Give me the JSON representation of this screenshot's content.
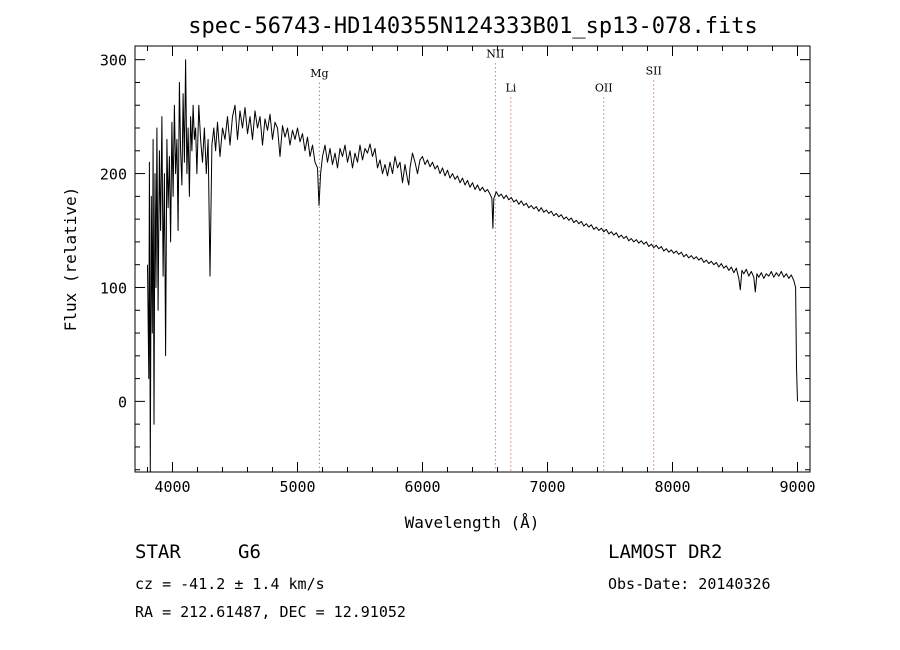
{
  "chart_data": {
    "type": "line",
    "title": "spec-56743-HD140355N124333B01_sp13-078.fits",
    "xlabel": "Wavelength (Å)",
    "ylabel": "Flux (relative)",
    "xlim": [
      3700,
      9100
    ],
    "ylim": [
      -62,
      312
    ],
    "xticks": [
      4000,
      5000,
      6000,
      7000,
      8000,
      9000
    ],
    "yticks": [
      0,
      100,
      200,
      300
    ],
    "grid": false,
    "series": [
      {
        "points": [
          [
            3800,
            120
          ],
          [
            3810,
            20
          ],
          [
            3815,
            210
          ],
          [
            3822,
            -62
          ],
          [
            3830,
            180
          ],
          [
            3838,
            60
          ],
          [
            3845,
            230
          ],
          [
            3852,
            -20
          ],
          [
            3860,
            200
          ],
          [
            3868,
            100
          ],
          [
            3875,
            240
          ],
          [
            3885,
            80
          ],
          [
            3895,
            220
          ],
          [
            3905,
            150
          ],
          [
            3915,
            250
          ],
          [
            3925,
            110
          ],
          [
            3935,
            200
          ],
          [
            3945,
            40
          ],
          [
            3955,
            230
          ],
          [
            3965,
            170
          ],
          [
            3975,
            215
          ],
          [
            3985,
            140
          ],
          [
            3995,
            245
          ],
          [
            4005,
            180
          ],
          [
            4015,
            260
          ],
          [
            4025,
            200
          ],
          [
            4035,
            230
          ],
          [
            4045,
            150
          ],
          [
            4055,
            280
          ],
          [
            4065,
            220
          ],
          [
            4075,
            190
          ],
          [
            4085,
            270
          ],
          [
            4095,
            210
          ],
          [
            4105,
            300
          ],
          [
            4115,
            200
          ],
          [
            4125,
            240
          ],
          [
            4135,
            180
          ],
          [
            4145,
            250
          ],
          [
            4155,
            220
          ],
          [
            4165,
            260
          ],
          [
            4175,
            230
          ],
          [
            4185,
            240
          ],
          [
            4195,
            200
          ],
          [
            4210,
            260
          ],
          [
            4225,
            230
          ],
          [
            4240,
            210
          ],
          [
            4255,
            240
          ],
          [
            4270,
            200
          ],
          [
            4285,
            230
          ],
          [
            4300,
            110
          ],
          [
            4315,
            225
          ],
          [
            4330,
            240
          ],
          [
            4345,
            220
          ],
          [
            4360,
            245
          ],
          [
            4380,
            215
          ],
          [
            4400,
            240
          ],
          [
            4420,
            230
          ],
          [
            4440,
            250
          ],
          [
            4460,
            225
          ],
          [
            4480,
            250
          ],
          [
            4500,
            260
          ],
          [
            4520,
            230
          ],
          [
            4540,
            255
          ],
          [
            4560,
            240
          ],
          [
            4580,
            258
          ],
          [
            4600,
            235
          ],
          [
            4620,
            250
          ],
          [
            4640,
            230
          ],
          [
            4660,
            255
          ],
          [
            4680,
            240
          ],
          [
            4700,
            250
          ],
          [
            4720,
            225
          ],
          [
            4740,
            248
          ],
          [
            4760,
            238
          ],
          [
            4780,
            252
          ],
          [
            4800,
            230
          ],
          [
            4820,
            245
          ],
          [
            4840,
            240
          ],
          [
            4860,
            215
          ],
          [
            4880,
            242
          ],
          [
            4900,
            232
          ],
          [
            4920,
            240
          ],
          [
            4940,
            225
          ],
          [
            4960,
            238
          ],
          [
            4980,
            230
          ],
          [
            5000,
            240
          ],
          [
            5020,
            228
          ],
          [
            5040,
            235
          ],
          [
            5060,
            220
          ],
          [
            5080,
            232
          ],
          [
            5100,
            215
          ],
          [
            5120,
            225
          ],
          [
            5140,
            210
          ],
          [
            5160,
            205
          ],
          [
            5172,
            172
          ],
          [
            5185,
            200
          ],
          [
            5200,
            215
          ],
          [
            5220,
            225
          ],
          [
            5240,
            210
          ],
          [
            5260,
            222
          ],
          [
            5280,
            208
          ],
          [
            5300,
            218
          ],
          [
            5320,
            205
          ],
          [
            5340,
            222
          ],
          [
            5360,
            215
          ],
          [
            5380,
            225
          ],
          [
            5400,
            210
          ],
          [
            5420,
            220
          ],
          [
            5440,
            205
          ],
          [
            5460,
            218
          ],
          [
            5480,
            210
          ],
          [
            5500,
            225
          ],
          [
            5520,
            212
          ],
          [
            5540,
            222
          ],
          [
            5560,
            218
          ],
          [
            5580,
            226
          ],
          [
            5600,
            215
          ],
          [
            5620,
            222
          ],
          [
            5640,
            205
          ],
          [
            5660,
            212
          ],
          [
            5680,
            200
          ],
          [
            5700,
            208
          ],
          [
            5720,
            198
          ],
          [
            5740,
            210
          ],
          [
            5760,
            200
          ],
          [
            5780,
            215
          ],
          [
            5800,
            205
          ],
          [
            5820,
            210
          ],
          [
            5840,
            192
          ],
          [
            5860,
            208
          ],
          [
            5880,
            195
          ],
          [
            5890,
            190
          ],
          [
            5900,
            205
          ],
          [
            5920,
            218
          ],
          [
            5940,
            210
          ],
          [
            5960,
            200
          ],
          [
            5980,
            212
          ],
          [
            6000,
            215
          ],
          [
            6020,
            208
          ],
          [
            6040,
            212
          ],
          [
            6060,
            206
          ],
          [
            6080,
            210
          ],
          [
            6100,
            204
          ],
          [
            6120,
            207
          ],
          [
            6140,
            200
          ],
          [
            6160,
            205
          ],
          [
            6180,
            198
          ],
          [
            6200,
            203
          ],
          [
            6220,
            196
          ],
          [
            6240,
            200
          ],
          [
            6260,
            195
          ],
          [
            6280,
            198
          ],
          [
            6300,
            192
          ],
          [
            6320,
            196
          ],
          [
            6340,
            190
          ],
          [
            6360,
            194
          ],
          [
            6380,
            188
          ],
          [
            6400,
            192
          ],
          [
            6420,
            186
          ],
          [
            6440,
            190
          ],
          [
            6460,
            185
          ],
          [
            6480,
            188
          ],
          [
            6500,
            184
          ],
          [
            6520,
            186
          ],
          [
            6540,
            182
          ],
          [
            6555,
            178
          ],
          [
            6563,
            152
          ],
          [
            6570,
            178
          ],
          [
            6590,
            184
          ],
          [
            6610,
            180
          ],
          [
            6630,
            182
          ],
          [
            6650,
            178
          ],
          [
            6670,
            181
          ],
          [
            6690,
            177
          ],
          [
            6710,
            179
          ],
          [
            6730,
            175
          ],
          [
            6750,
            177
          ],
          [
            6770,
            173
          ],
          [
            6790,
            176
          ],
          [
            6810,
            172
          ],
          [
            6830,
            174
          ],
          [
            6850,
            170
          ],
          [
            6870,
            172
          ],
          [
            6890,
            169
          ],
          [
            6910,
            171
          ],
          [
            6930,
            167
          ],
          [
            6950,
            170
          ],
          [
            6970,
            166
          ],
          [
            6990,
            168
          ],
          [
            7010,
            165
          ],
          [
            7030,
            167
          ],
          [
            7050,
            163
          ],
          [
            7070,
            165
          ],
          [
            7090,
            162
          ],
          [
            7110,
            164
          ],
          [
            7130,
            160
          ],
          [
            7150,
            162
          ],
          [
            7170,
            159
          ],
          [
            7190,
            161
          ],
          [
            7210,
            157
          ],
          [
            7230,
            159
          ],
          [
            7250,
            156
          ],
          [
            7270,
            158
          ],
          [
            7290,
            154
          ],
          [
            7310,
            156
          ],
          [
            7330,
            153
          ],
          [
            7350,
            155
          ],
          [
            7370,
            151
          ],
          [
            7390,
            153
          ],
          [
            7410,
            150
          ],
          [
            7430,
            152
          ],
          [
            7450,
            149
          ],
          [
            7470,
            151
          ],
          [
            7490,
            147
          ],
          [
            7510,
            149
          ],
          [
            7530,
            146
          ],
          [
            7550,
            148
          ],
          [
            7570,
            144
          ],
          [
            7590,
            146
          ],
          [
            7610,
            143
          ],
          [
            7630,
            145
          ],
          [
            7650,
            141
          ],
          [
            7670,
            143
          ],
          [
            7690,
            140
          ],
          [
            7710,
            142
          ],
          [
            7730,
            139
          ],
          [
            7750,
            141
          ],
          [
            7770,
            138
          ],
          [
            7790,
            140
          ],
          [
            7810,
            136
          ],
          [
            7830,
            138
          ],
          [
            7850,
            135
          ],
          [
            7870,
            137
          ],
          [
            7890,
            134
          ],
          [
            7910,
            136
          ],
          [
            7930,
            132
          ],
          [
            7950,
            134
          ],
          [
            7970,
            131
          ],
          [
            7990,
            133
          ],
          [
            8010,
            130
          ],
          [
            8030,
            132
          ],
          [
            8050,
            129
          ],
          [
            8070,
            131
          ],
          [
            8090,
            127
          ],
          [
            8110,
            129
          ],
          [
            8130,
            126
          ],
          [
            8150,
            128
          ],
          [
            8170,
            125
          ],
          [
            8190,
            127
          ],
          [
            8210,
            124
          ],
          [
            8230,
            126
          ],
          [
            8250,
            122
          ],
          [
            8270,
            124
          ],
          [
            8290,
            121
          ],
          [
            8310,
            123
          ],
          [
            8330,
            120
          ],
          [
            8350,
            122
          ],
          [
            8370,
            118
          ],
          [
            8390,
            121
          ],
          [
            8410,
            117
          ],
          [
            8430,
            119
          ],
          [
            8450,
            115
          ],
          [
            8470,
            118
          ],
          [
            8490,
            113
          ],
          [
            8510,
            117
          ],
          [
            8530,
            108
          ],
          [
            8542,
            98
          ],
          [
            8555,
            115
          ],
          [
            8570,
            112
          ],
          [
            8590,
            116
          ],
          [
            8610,
            110
          ],
          [
            8630,
            114
          ],
          [
            8650,
            109
          ],
          [
            8662,
            96
          ],
          [
            8675,
            112
          ],
          [
            8690,
            109
          ],
          [
            8710,
            113
          ],
          [
            8730,
            108
          ],
          [
            8750,
            112
          ],
          [
            8770,
            110
          ],
          [
            8790,
            114
          ],
          [
            8810,
            109
          ],
          [
            8830,
            113
          ],
          [
            8850,
            110
          ],
          [
            8870,
            114
          ],
          [
            8890,
            109
          ],
          [
            8910,
            112
          ],
          [
            8930,
            108
          ],
          [
            8950,
            111
          ],
          [
            8970,
            106
          ],
          [
            8985,
            100
          ],
          [
            8992,
            30
          ],
          [
            9000,
            0
          ]
        ]
      }
    ],
    "annotations": [
      {
        "text": "Mg",
        "x": 5175,
        "label_y": 285
      },
      {
        "text": "NII",
        "x": 6583,
        "label_y": 302
      },
      {
        "text": "Li",
        "x": 6707,
        "label_y": 272
      },
      {
        "text": "OII",
        "x": 7450,
        "label_y": 272
      },
      {
        "text": "SII",
        "x": 7850,
        "label_y": 287
      }
    ]
  },
  "info": {
    "object_type": "STAR",
    "subclass": "G6",
    "survey": "LAMOST DR2",
    "velocity": "cz = -41.2 ± 1.4 km/s",
    "obs_date": "Obs-Date: 20140326",
    "coordinates": "RA = 212.61487, DEC =  12.91052"
  }
}
